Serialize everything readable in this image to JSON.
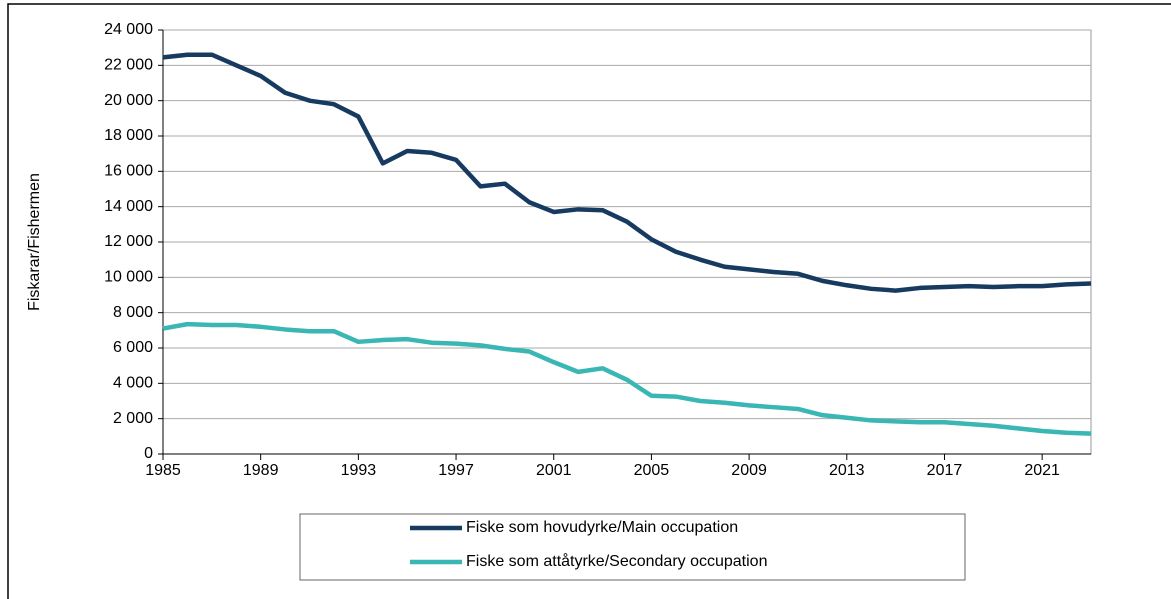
{
  "chart_data": {
    "type": "line",
    "y_label": "Fiskarar/Fishermen",
    "x": [
      1985,
      1986,
      1987,
      1988,
      1989,
      1990,
      1991,
      1992,
      1993,
      1994,
      1995,
      1996,
      1997,
      1998,
      1999,
      2000,
      2001,
      2002,
      2003,
      2004,
      2005,
      2006,
      2007,
      2008,
      2009,
      2010,
      2011,
      2012,
      2013,
      2014,
      2015,
      2016,
      2017,
      2018,
      2019,
      2020,
      2021,
      2022,
      2023
    ],
    "series": [
      {
        "name": "Fiske som hovudyrke/Main occupation",
        "color": "#173a60",
        "values": [
          22450,
          22600,
          22600,
          22000,
          21400,
          20450,
          20000,
          19800,
          19100,
          16450,
          17150,
          17050,
          16650,
          15150,
          15300,
          14250,
          13700,
          13850,
          13800,
          13150,
          12150,
          11450,
          11000,
          10600,
          10450,
          10300,
          10200,
          9800,
          9550,
          9350,
          9250,
          9400,
          9450,
          9500,
          9450,
          9500,
          9500,
          9600,
          9650
        ]
      },
      {
        "name": "Fiske som attåtyrke/Secondary occupation",
        "color": "#3ab6b4",
        "values": [
          7100,
          7350,
          7300,
          7300,
          7200,
          7050,
          6950,
          6950,
          6350,
          6450,
          6500,
          6300,
          6250,
          6150,
          5950,
          5800,
          5200,
          4650,
          4850,
          4200,
          3300,
          3250,
          3000,
          2900,
          2750,
          2650,
          2550,
          2200,
          2050,
          1900,
          1850,
          1800,
          1800,
          1700,
          1600,
          1450,
          1300,
          1200,
          1150
        ]
      }
    ],
    "xlim": [
      1985,
      2023
    ],
    "xticks": [
      1985,
      1989,
      1993,
      1997,
      2001,
      2005,
      2009,
      2013,
      2017,
      2021
    ],
    "ylim": [
      0,
      24000
    ],
    "yticks": [
      0,
      {
        "value": 2000,
        "label": "2 000"
      },
      {
        "value": 4000,
        "label": "4 000"
      },
      {
        "value": 6000,
        "label": "6 000"
      },
      {
        "value": 8000,
        "label": "8 000"
      },
      {
        "value": 10000,
        "label": "10 000"
      },
      {
        "value": 12000,
        "label": "12 000"
      },
      {
        "value": 14000,
        "label": "14 000"
      },
      {
        "value": 16000,
        "label": "16 000"
      },
      {
        "value": 18000,
        "label": "18 000"
      },
      {
        "value": 20000,
        "label": "20 000"
      },
      {
        "value": 22000,
        "label": "22 000"
      },
      {
        "value": 24000,
        "label": "24 000"
      }
    ],
    "grid": true,
    "legend": "bottom"
  }
}
